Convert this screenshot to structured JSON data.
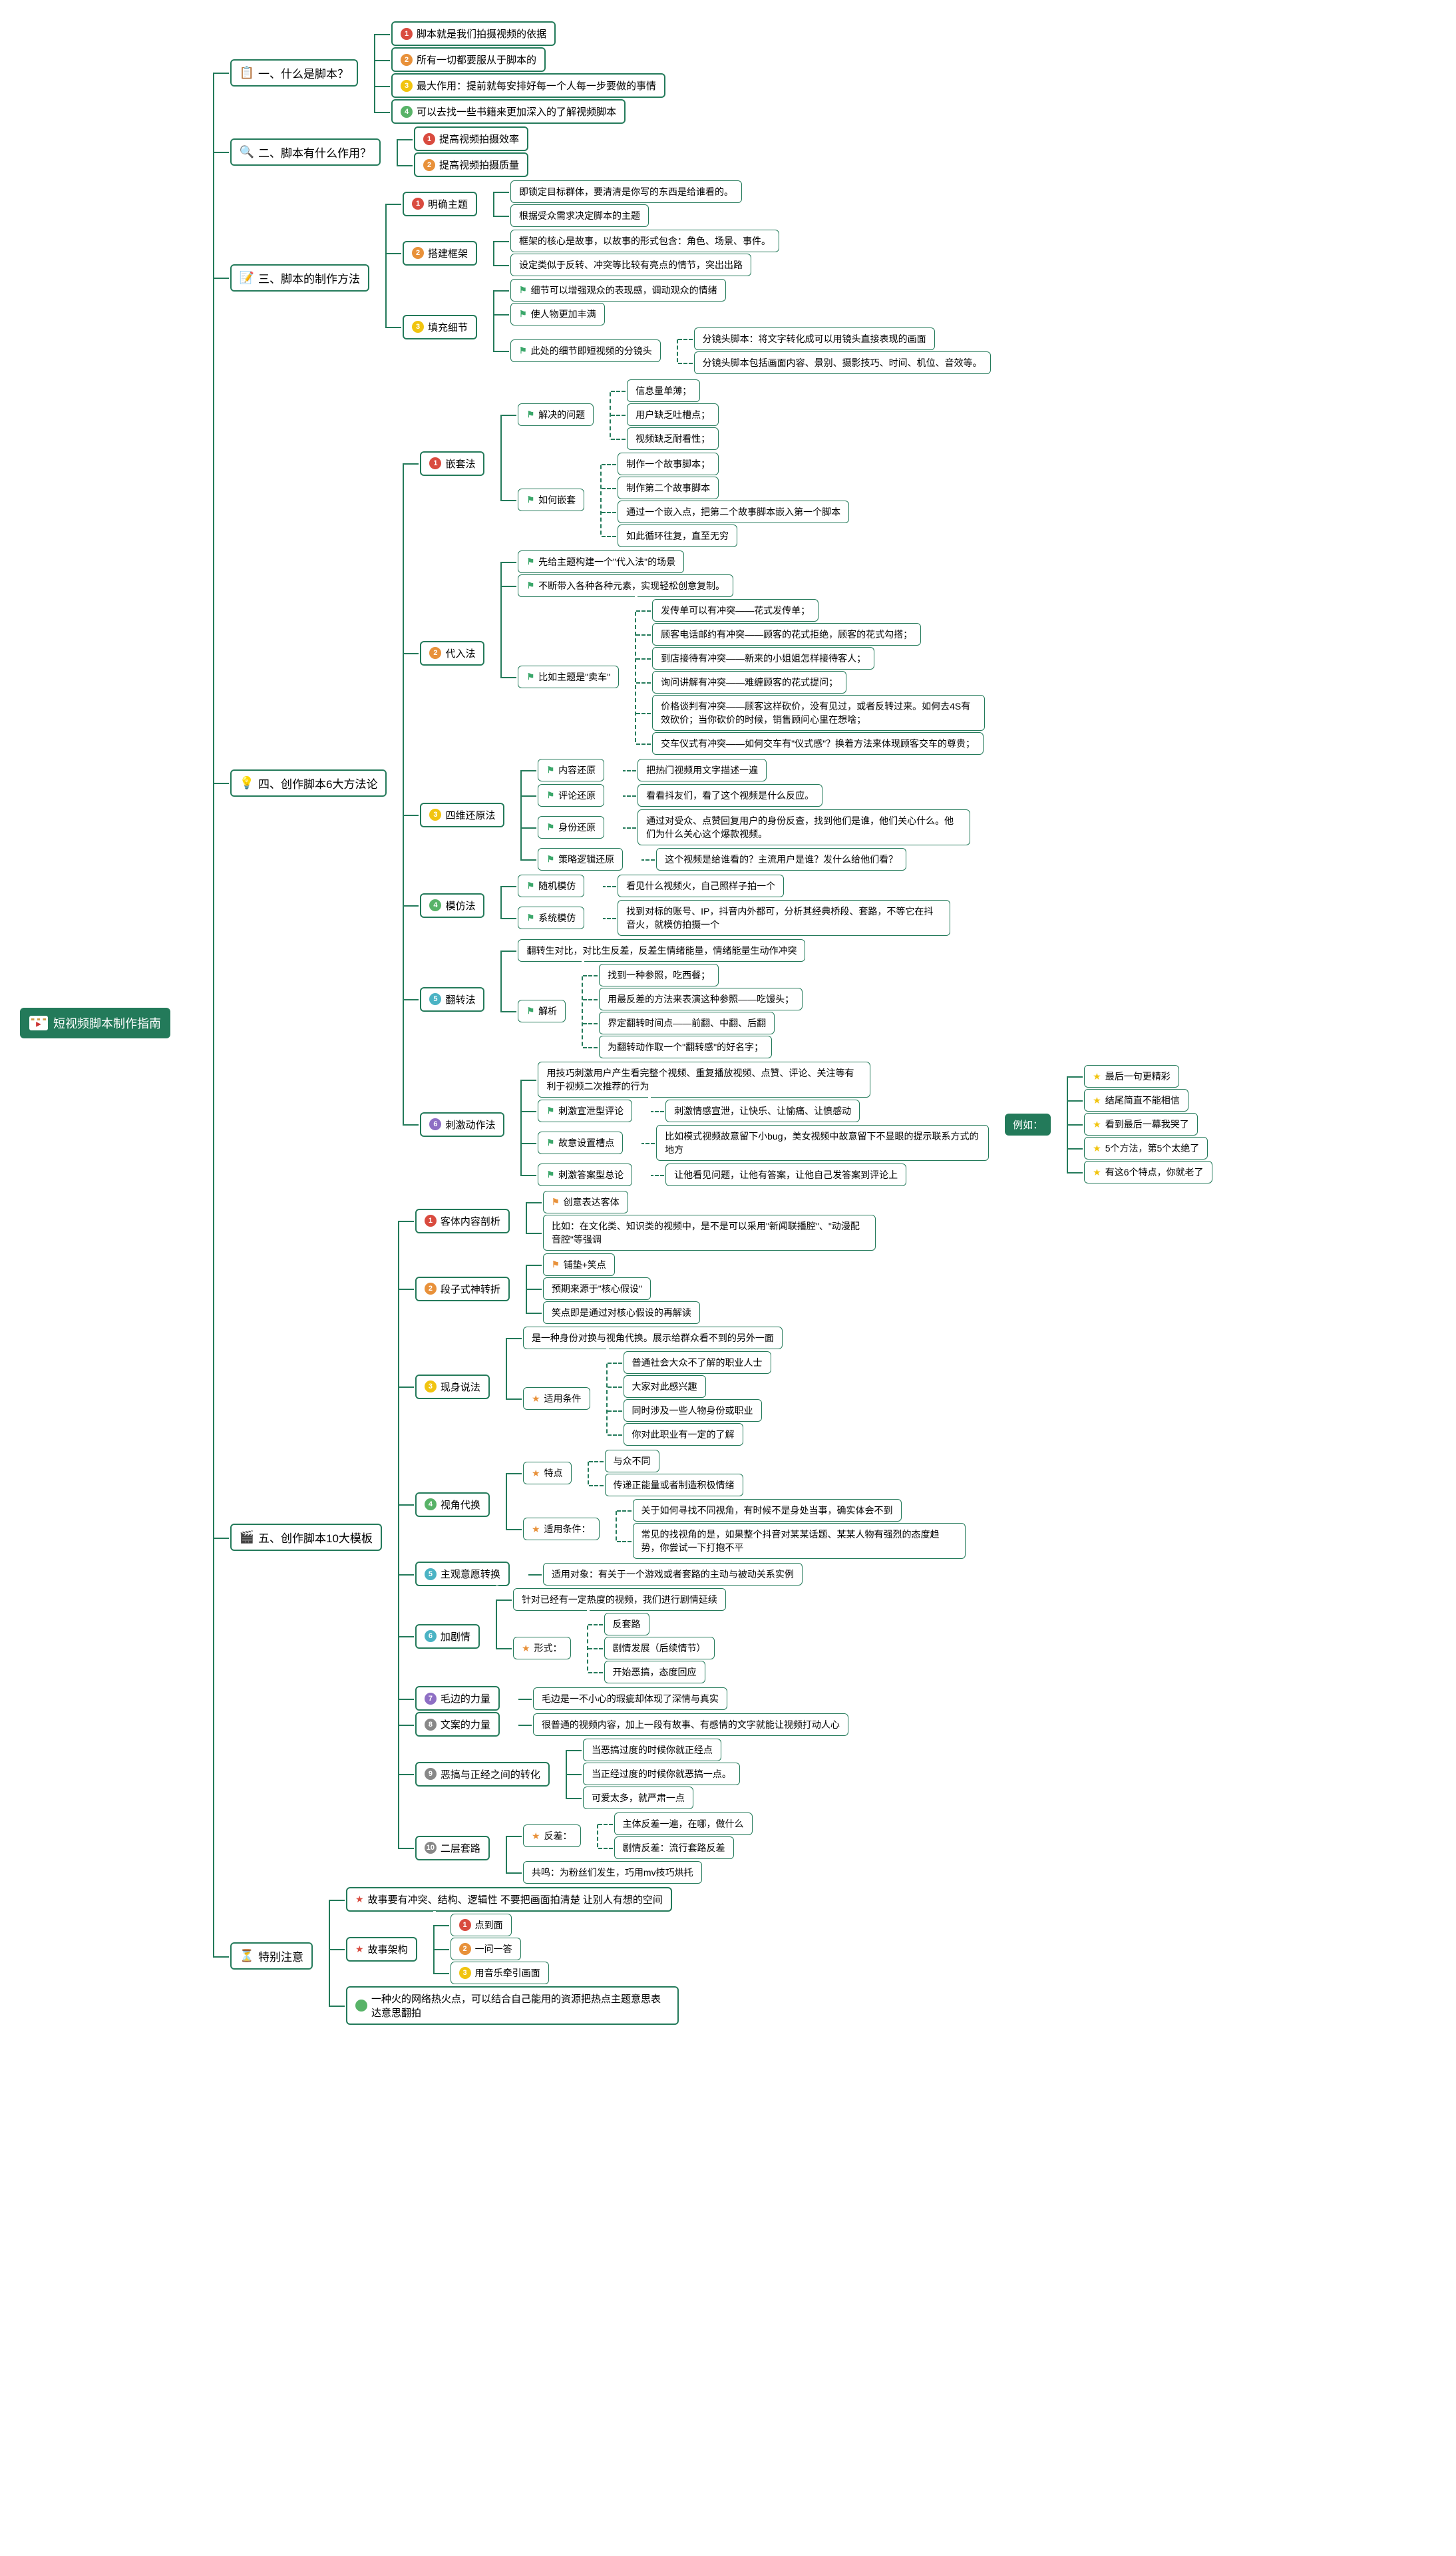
{
  "colors": {
    "primary": "#237a5a",
    "bg": "#ffffff",
    "bullet_red": "#d94b3f",
    "bullet_orange": "#e8913a",
    "bullet_yellow": "#f1c40f",
    "bullet_green": "#58b368",
    "bullet_cyan": "#4bb3c4",
    "bullet_purple": "#8e6fc4",
    "bullet_gray": "#888888",
    "flag_green": "#3ba76a",
    "flag_orange": "#e8913a",
    "flag_red": "#d94b3f",
    "star_yellow": "#f1c40f",
    "star_orange": "#e8913a",
    "star_red": "#d94b3f"
  },
  "fonts": {
    "root": 18,
    "l1": 17,
    "l2": 15,
    "l3": 14
  },
  "root": {
    "label": "短视频脚本制作指南"
  },
  "sections": [
    {
      "icon": "📋",
      "icon_color": "#3a7ab8",
      "title": "一、什么是脚本？",
      "children": [
        {
          "b": {
            "n": "1",
            "c": "#d94b3f"
          },
          "t": "脚本就是我们拍摄视频的依据"
        },
        {
          "b": {
            "n": "2",
            "c": "#e8913a"
          },
          "t": "所有一切都要服从于脚本的"
        },
        {
          "b": {
            "n": "3",
            "c": "#f1c40f"
          },
          "t": "最大作用：提前就每安排好每一个人每一步要做的事情"
        },
        {
          "b": {
            "n": "4",
            "c": "#58b368"
          },
          "t": "可以去找一些书籍来更加深入的了解视频脚本"
        }
      ]
    },
    {
      "icon": "🔍",
      "icon_color": "#3a7ab8",
      "title": "二、脚本有什么作用？",
      "children": [
        {
          "b": {
            "n": "1",
            "c": "#d94b3f"
          },
          "t": "提高视频拍摄效率"
        },
        {
          "b": {
            "n": "2",
            "c": "#e8913a"
          },
          "t": "提高视频拍摄质量"
        }
      ]
    },
    {
      "icon": "📝",
      "icon_color": "#6b8e4e",
      "title": "三、脚本的制作方法",
      "children": [
        {
          "b": {
            "n": "1",
            "c": "#d94b3f"
          },
          "t": "明确主题",
          "children": [
            {
              "t": "即锁定目标群体，要清清是你写的东西是给谁看的。"
            },
            {
              "t": "根据受众需求决定脚本的主题"
            }
          ]
        },
        {
          "b": {
            "n": "2",
            "c": "#e8913a"
          },
          "t": "搭建框架",
          "children": [
            {
              "t": "框架的核心是故事，以故事的形式包含：角色、场景、事件。"
            },
            {
              "t": "设定类似于反转、冲突等比较有亮点的情节，突出出路"
            }
          ]
        },
        {
          "b": {
            "n": "3",
            "c": "#f1c40f"
          },
          "t": "填充细节",
          "children": [
            {
              "f": "#3ba76a",
              "t": "细节可以增强观众的表现感，调动观众的情绪"
            },
            {
              "f": "#3ba76a",
              "t": "使人物更加丰满"
            },
            {
              "f": "#3ba76a",
              "t": "此处的细节即短视频的分镜头",
              "children": [
                {
                  "t": "分镜头脚本：将文字转化成可以用镜头直接表现的画面"
                },
                {
                  "t": "分镜头脚本包括画面内容、景别、摄影技巧、时间、机位、音效等。"
                }
              ]
            }
          ]
        }
      ]
    },
    {
      "icon": "💡",
      "icon_color": "#f1c40f",
      "title": "四、创作脚本6大方法论",
      "children": [
        {
          "b": {
            "n": "1",
            "c": "#d94b3f"
          },
          "t": "嵌套法",
          "children": [
            {
              "f": "#3ba76a",
              "t": "解决的问题",
              "children": [
                {
                  "t": "信息量单薄；"
                },
                {
                  "t": "用户缺乏吐槽点；"
                },
                {
                  "t": "视频缺乏耐看性；"
                }
              ]
            },
            {
              "f": "#3ba76a",
              "t": "如何嵌套",
              "children": [
                {
                  "t": "制作一个故事脚本；"
                },
                {
                  "t": "制作第二个故事脚本"
                },
                {
                  "t": "通过一个嵌入点，把第二个故事脚本嵌入第一个脚本"
                },
                {
                  "t": "如此循环往复，直至无穷"
                }
              ]
            }
          ]
        },
        {
          "b": {
            "n": "2",
            "c": "#e8913a"
          },
          "t": "代入法",
          "children": [
            {
              "f": "#3ba76a",
              "t": "先给主题构建一个\"代入法\"的场景"
            },
            {
              "f": "#3ba76a",
              "t": "不断带入各种各种元素，实现轻松创意复制。"
            },
            {
              "f": "#3ba76a",
              "t": "比如主题是\"卖车\"",
              "children": [
                {
                  "t": "发传单可以有冲突——花式发传单；"
                },
                {
                  "t": "顾客电话邮约有冲突——顾客的花式拒绝，顾客的花式勾搭；"
                },
                {
                  "t": "到店接待有冲突——新来的小姐姐怎样接待客人；"
                },
                {
                  "t": "询问讲解有冲突——难缠顾客的花式提问；"
                },
                {
                  "t": "价格谈判有冲突——顾客这样砍价，没有见过，或者反转过来。如何去4S有效砍价；当你砍价的时候，销售顾问心里在想啥；"
                },
                {
                  "t": "交车仪式有冲突——如何交车有\"仪式感\"？换着方法来体现顾客交车的尊贵；"
                }
              ]
            }
          ]
        },
        {
          "b": {
            "n": "3",
            "c": "#f1c40f"
          },
          "t": "四维还原法",
          "children": [
            {
              "f": "#3ba76a",
              "t": "内容还原",
              "children": [
                {
                  "t": "把热门视频用文字描述一遍"
                }
              ]
            },
            {
              "f": "#3ba76a",
              "t": "评论还原",
              "children": [
                {
                  "t": "看看抖友们，看了这个视频是什么反应。"
                }
              ]
            },
            {
              "f": "#3ba76a",
              "t": "身份还原",
              "children": [
                {
                  "t": "通过对受众、点赞回复用户的身份反查，找到他们是谁，他们关心什么。他们为什么关心这个爆款视频。"
                }
              ]
            },
            {
              "f": "#3ba76a",
              "t": "策略逻辑还原",
              "children": [
                {
                  "t": "这个视频是给谁看的？主流用户是谁？发什么给他们看？"
                }
              ]
            }
          ]
        },
        {
          "b": {
            "n": "4",
            "c": "#58b368"
          },
          "t": "模仿法",
          "children": [
            {
              "f": "#3ba76a",
              "t": "随机模仿",
              "children": [
                {
                  "t": "看见什么视频火，自己照样子拍一个"
                }
              ]
            },
            {
              "f": "#3ba76a",
              "t": "系统模仿",
              "children": [
                {
                  "t": "找到对标的账号、IP，抖音内外都可，分析其经典桥段、套路，不等它在抖音火，就模仿拍摄一个"
                }
              ]
            }
          ]
        },
        {
          "b": {
            "n": "5",
            "c": "#4bb3c4"
          },
          "t": "翻转法",
          "children": [
            {
              "t": "翻转生对比，对比生反差，反差生情绪能量，情绪能量生动作冲突"
            },
            {
              "f": "#3ba76a",
              "t": "解析",
              "children": [
                {
                  "t": "找到一种参照，吃西餐；"
                },
                {
                  "t": "用最反差的方法来表演这种参照——吃馒头；"
                },
                {
                  "t": "界定翻转时间点——前翻、中翻、后翻"
                },
                {
                  "t": "为翻转动作取一个\"翻转感\"的好名字；"
                }
              ]
            }
          ]
        },
        {
          "b": {
            "n": "6",
            "c": "#8e6fc4"
          },
          "t": "刺激动作法",
          "children": [
            {
              "t": "用技巧刺激用户产生看完整个视频、重复播放视频、点赞、评论、关注等有利于视频二次推荐的行为"
            },
            {
              "f": "#3ba76a",
              "t": "刺激宣泄型评论",
              "children": [
                {
                  "t": "刺激情感宣泄，让快乐、让愉痛、让愤感动"
                }
              ]
            },
            {
              "f": "#3ba76a",
              "t": "故意设置槽点",
              "children": [
                {
                  "t": "比如模式视频故意留下小bug，美女视频中故意留下不显眼的提示联系方式的地方"
                }
              ]
            },
            {
              "f": "#3ba76a",
              "t": "刺激答案型总论",
              "children": [
                {
                  "t": "让他看见问题，让他有答案，让他自己发答案到评论上"
                }
              ]
            }
          ],
          "example": {
            "label": "例如：",
            "items": [
              {
                "s": "#f1c40f",
                "t": "最后一句更精彩"
              },
              {
                "s": "#f1c40f",
                "t": "结尾简直不能相信"
              },
              {
                "s": "#f1c40f",
                "t": "看到最后一幕我哭了"
              },
              {
                "s": "#f1c40f",
                "t": "5个方法，第5个太绝了"
              },
              {
                "s": "#f1c40f",
                "t": "有这6个特点，你就老了"
              }
            ]
          }
        }
      ]
    },
    {
      "icon": "🎬",
      "icon_color": "#c08050",
      "title": "五、创作脚本10大模板",
      "children": [
        {
          "b": {
            "n": "1",
            "c": "#d94b3f"
          },
          "t": "客体内容剖析",
          "children": [
            {
              "f": "#e8913a",
              "t": "创意表达客体"
            },
            {
              "t": "比如：在文化类、知识类的视频中，是不是可以采用\"新闻联播腔\"、\"动漫配音腔\"等强调"
            }
          ]
        },
        {
          "b": {
            "n": "2",
            "c": "#e8913a"
          },
          "t": "段子式神转折",
          "children": [
            {
              "f": "#e8913a",
              "t": "铺垫+笑点"
            },
            {
              "t": "预期来源于\"核心假设\""
            },
            {
              "t": "笑点即是通过对核心假设的再解读"
            }
          ]
        },
        {
          "b": {
            "n": "3",
            "c": "#f1c40f"
          },
          "t": "现身说法",
          "children": [
            {
              "t": "是一种身份对换与视角代换。展示给群众看不到的另外一面"
            },
            {
              "s": "#e8913a",
              "t": "适用条件",
              "children": [
                {
                  "t": "普通社会大众不了解的职业人士"
                },
                {
                  "t": "大家对此感兴趣"
                },
                {
                  "t": "同时涉及一些人物身份或职业"
                },
                {
                  "t": "你对此职业有一定的了解"
                }
              ]
            }
          ]
        },
        {
          "b": {
            "n": "4",
            "c": "#58b368"
          },
          "t": "视角代换",
          "children": [
            {
              "s": "#e8913a",
              "t": "特点",
              "children": [
                {
                  "t": "与众不同"
                },
                {
                  "t": "传递正能量或者制造积极情绪"
                }
              ]
            },
            {
              "s": "#e8913a",
              "t": "适用条件：",
              "children": [
                {
                  "t": "关于如何寻找不同视角，有时候不是身处当事，确实体会不到"
                },
                {
                  "t": "常见的找视角的是，如果整个抖音对某某话题、某某人物有强烈的态度趋势，你尝试一下打抱不平"
                }
              ]
            }
          ]
        },
        {
          "b": {
            "n": "5",
            "c": "#4bb3c4"
          },
          "t": "主观意愿转换",
          "children": [
            {
              "t": "适用对象：有关于一个游戏或者套路的主动与被动关系实例"
            }
          ]
        },
        {
          "b": {
            "n": "6",
            "c": "#4bb3c4"
          },
          "t": "加剧情",
          "children": [
            {
              "t": "针对已经有一定热度的视频，我们进行剧情延续"
            },
            {
              "s": "#e8913a",
              "t": "形式：",
              "children": [
                {
                  "t": "反套路"
                },
                {
                  "t": "剧情发展（后续情节）"
                },
                {
                  "t": "开始恶搞，态度回应"
                }
              ]
            }
          ]
        },
        {
          "b": {
            "n": "7",
            "c": "#8e6fc4"
          },
          "t": "毛边的力量",
          "children": [
            {
              "t": "毛边是一不小心的瑕疵却体现了深情与真实"
            }
          ]
        },
        {
          "b": {
            "n": "8",
            "c": "#888888"
          },
          "t": "文案的力量",
          "children": [
            {
              "t": "很普通的视频内容，加上一段有故事、有感情的文字就能让视频打动人心"
            }
          ]
        },
        {
          "b": {
            "n": "9",
            "c": "#888888"
          },
          "t": "恶搞与正经之间的转化",
          "children": [
            {
              "t": "当恶搞过度的时候你就正经点"
            },
            {
              "t": "当正经过度的时候你就恶搞一点。"
            },
            {
              "t": "可爱太多，就严肃一点"
            }
          ]
        },
        {
          "b": {
            "n": "10",
            "c": "#888888"
          },
          "t": "二层套路",
          "children": [
            {
              "s": "#e8913a",
              "t": "反差：",
              "children": [
                {
                  "t": "主体反差一遍，在哪，做什么"
                },
                {
                  "t": "剧情反差：流行套路反差"
                }
              ]
            },
            {
              "t": "共鸣：为粉丝们发生，巧用mv技巧烘托"
            }
          ]
        }
      ]
    },
    {
      "icon": "⏳",
      "icon_color": "#7aa8c4",
      "title": "特别注意",
      "children": [
        {
          "s": "#d94b3f",
          "t": "故事要有冲突、结构、逻辑性 不要把画面拍清楚 让别人有想的空间"
        },
        {
          "s": "#d94b3f",
          "t": "故事架构",
          "children": [
            {
              "b": {
                "n": "1",
                "c": "#d94b3f"
              },
              "t": "点到面"
            },
            {
              "b": {
                "n": "2",
                "c": "#e8913a"
              },
              "t": "一问一答"
            },
            {
              "b": {
                "n": "3",
                "c": "#f1c40f"
              },
              "t": "用音乐牵引画面"
            }
          ]
        },
        {
          "b": {
            "n": "",
            "c": "#58b368"
          },
          "t": "一种火的网络热火点，可以结合自己能用的资源把热点主题意思表达意思翻拍"
        }
      ]
    }
  ]
}
